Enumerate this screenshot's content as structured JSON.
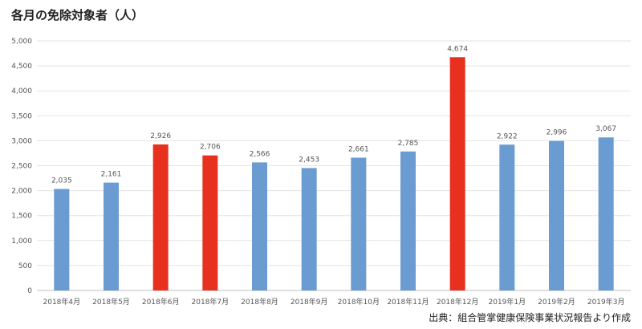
{
  "chart_data": {
    "type": "bar",
    "title": "各月の免除対象者（人）",
    "categories": [
      "2018年4月",
      "2018年5月",
      "2018年6月",
      "2018年7月",
      "2018年8月",
      "2018年9月",
      "2018年10月",
      "2018年11月",
      "2018年12月",
      "2019年1月",
      "2019年2月",
      "2019年3月"
    ],
    "values": [
      2035,
      2161,
      2926,
      2706,
      2566,
      2453,
      2661,
      2785,
      4674,
      2922,
      2996,
      3067
    ],
    "value_labels": [
      "2,035",
      "2,161",
      "2,926",
      "2,706",
      "2,566",
      "2,453",
      "2,661",
      "2,785",
      "4,674",
      "2,922",
      "2,996",
      "3,067"
    ],
    "highlighted": [
      false,
      false,
      true,
      true,
      false,
      false,
      false,
      false,
      true,
      false,
      false,
      false
    ],
    "colors": {
      "normal": "#6a9bd1",
      "highlight": "#e8301f"
    },
    "ylim": [
      0,
      5000
    ],
    "yticks": [
      0,
      500,
      1000,
      1500,
      2000,
      2500,
      3000,
      3500,
      4000,
      4500,
      5000
    ],
    "ytick_labels": [
      "0",
      "500",
      "1,000",
      "1,500",
      "2,000",
      "2,500",
      "3,000",
      "3,500",
      "4,000",
      "4,500",
      "5,000"
    ],
    "grid": true,
    "source": "出典：組合管掌健康保険事業状況報告より作成"
  }
}
